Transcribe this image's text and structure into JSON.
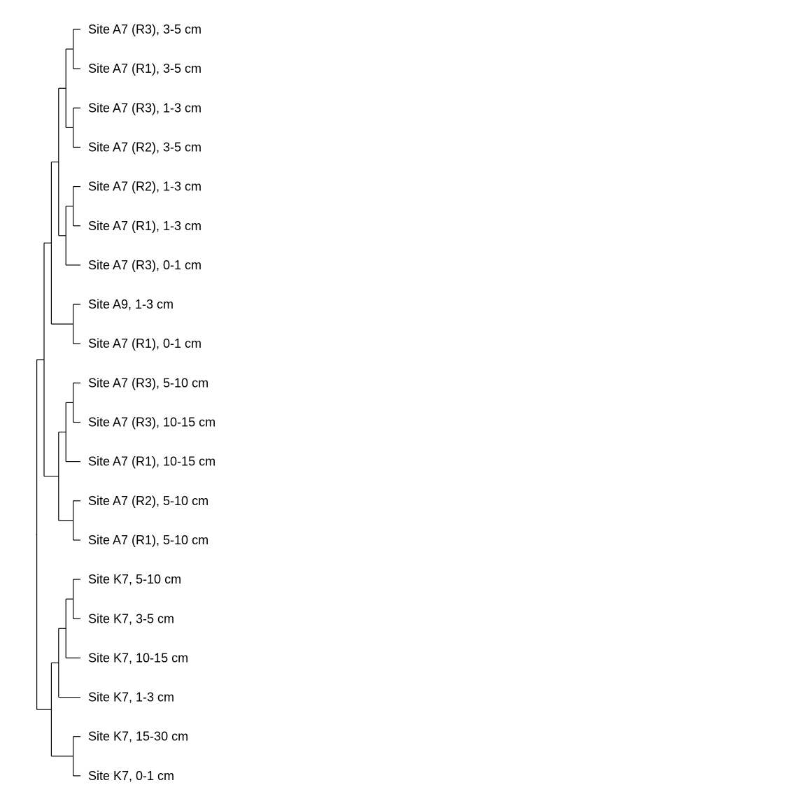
{
  "dendrogram": {
    "leaves": [
      "Site A7 (R3), 3-5 cm",
      "Site A7 (R1), 3-5 cm",
      "Site A7 (R3), 1-3 cm",
      "Site A7 (R2), 3-5 cm",
      "Site A7 (R2), 1-3 cm",
      "Site A7 (R1), 1-3 cm",
      "Site A7 (R3), 0-1 cm",
      "Site A9, 1-3 cm",
      "Site A7 (R1), 0-1 cm",
      "Site A7 (R3), 5-10 cm",
      "Site A7 (R3), 10-15 cm",
      "Site A7 (R1), 10-15 cm",
      "Site A7 (R2), 5-10 cm",
      "Site A7 (R1), 5-10 cm",
      "Site K7, 5-10 cm",
      "Site K7, 3-5 cm",
      "Site K7, 10-15 cm",
      "Site K7, 1-3 cm",
      "Site K7, 15-30 cm",
      "Site K7, 0-1 cm"
    ],
    "tree": [
      [
        [
          [
            [
              [
                0,
                1
              ],
              [
                2,
                3
              ]
            ],
            [
              [
                4,
                5
              ],
              6
            ]
          ],
          [
            7,
            8
          ]
        ],
        [
          [
            [
              9,
              10
            ],
            11
          ],
          [
            12,
            13
          ]
        ]
      ],
      [
        [
          [
            [
              14,
              15
            ],
            16
          ],
          17
        ],
        [
          18,
          19
        ]
      ]
    ],
    "line_color": "#000000"
  }
}
